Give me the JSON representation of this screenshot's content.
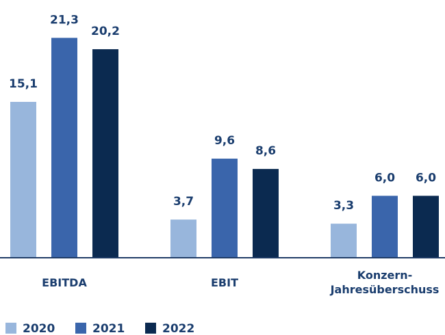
{
  "chart_data": {
    "type": "bar",
    "categories": [
      "EBITDA",
      "EBIT",
      "Konzern-\nJahresüberschuss"
    ],
    "series": [
      {
        "name": "2020",
        "color": "#98b6dc",
        "values": [
          15.1,
          3.7,
          3.3
        ],
        "value_labels": [
          "15,1",
          "3,7",
          "3,3"
        ]
      },
      {
        "name": "2021",
        "color": "#3a65ab",
        "values": [
          21.3,
          9.6,
          6.0
        ],
        "value_labels": [
          "21,3",
          "9,6",
          "6,0"
        ]
      },
      {
        "name": "2022",
        "color": "#0b2a50",
        "values": [
          20.2,
          8.6,
          6.0
        ],
        "value_labels": [
          "20,2",
          "8,6",
          "6,0"
        ]
      }
    ],
    "legend": "bottom-left"
  }
}
